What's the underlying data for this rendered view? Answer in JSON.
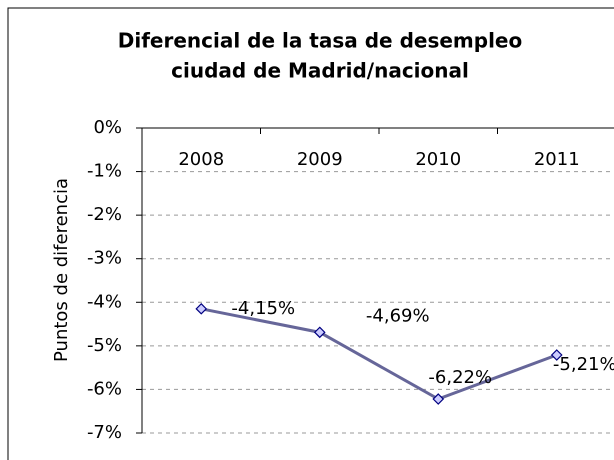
{
  "chart_data": {
    "type": "line",
    "title": [
      "Diferencial de la tasa de desempleo",
      "ciudad de Madrid/nacional"
    ],
    "y_label": "Puntos de diferencia",
    "categories": [
      "2008",
      "2009",
      "2010",
      "2011"
    ],
    "series": [
      {
        "name": null,
        "color": "#666699",
        "values": [
          -4.15,
          -4.69,
          -6.22,
          -5.21
        ],
        "value_labels": [
          "-4,15%",
          "-4,69%",
          "-6,22%",
          "-5,21%"
        ]
      }
    ],
    "ylim": [
      -7,
      0
    ],
    "yticks": [
      {
        "value": 0,
        "label": "0%"
      },
      {
        "value": -1,
        "label": "-1%"
      },
      {
        "value": -2,
        "label": "-2%"
      },
      {
        "value": -3,
        "label": "-3%"
      },
      {
        "value": -4,
        "label": "-4%"
      },
      {
        "value": -5,
        "label": "-5%"
      },
      {
        "value": -6,
        "label": "-6%"
      },
      {
        "value": -7,
        "label": "-7%"
      }
    ],
    "grid": true
  }
}
